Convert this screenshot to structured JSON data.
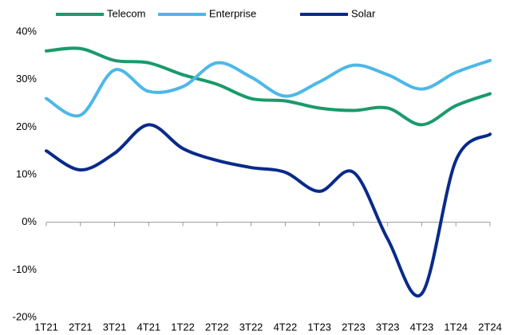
{
  "chart_data": {
    "type": "line",
    "categories": [
      "1T21",
      "2T21",
      "3T21",
      "4T21",
      "1T22",
      "2T22",
      "3T22",
      "4T22",
      "1T23",
      "2T23",
      "3T23",
      "4T23",
      "1T24",
      "2T24"
    ],
    "series": [
      {
        "name": "Telecom",
        "color": "#1a9a6c",
        "values": [
          36,
          36.5,
          34,
          33.5,
          31,
          29,
          26,
          25.5,
          24,
          23.5,
          24,
          20.5,
          24.5,
          27
        ]
      },
      {
        "name": "Enterprise",
        "color": "#4cb8e8",
        "values": [
          26,
          22.5,
          32,
          27.5,
          28.5,
          33.5,
          30.5,
          26.5,
          29.5,
          33,
          31,
          28,
          31.5,
          34
        ]
      },
      {
        "name": "Solar",
        "color": "#0a2a8a",
        "values": [
          15,
          11,
          14.5,
          20.5,
          15.5,
          13,
          11.5,
          10.5,
          6.5,
          10.5,
          -3.5,
          -15,
          13,
          18.5
        ]
      }
    ],
    "ylim": [
      -20,
      40
    ],
    "yticks": [
      {
        "value": -20,
        "label": "-20%"
      },
      {
        "value": -10,
        "label": "-10%"
      },
      {
        "value": 0,
        "label": "0%"
      },
      {
        "value": 10,
        "label": "10%"
      },
      {
        "value": 20,
        "label": "20%"
      },
      {
        "value": 30,
        "label": "30%"
      },
      {
        "value": 40,
        "label": "40%"
      }
    ],
    "grid": false,
    "legend": "top"
  }
}
